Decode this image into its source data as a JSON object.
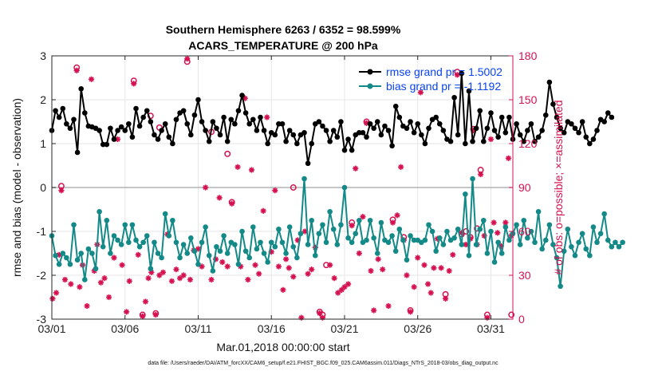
{
  "chart_data": {
    "type": "line",
    "title_line1": "Southern Hemisphere 6263 / 6352 = 98.599%",
    "title_line2": "ACARS_TEMPERATURE @ 200 hPa",
    "xlabel": "Mar.01,2018 00:00:00 start",
    "ylabel": "rmse and bias (model - observation)",
    "ylabel_right": "# of obs: o=possible; ×=assimilated",
    "footer": "data file: /Users/raeder/DAI/ATM_forcXX/CAM6_setup/f.e21.FHIST_BGC.f09_025.CAM6assim.011/Diags_NTrS_2018-03/obs_diag_output.nc",
    "xlim": [
      0,
      31.5
    ],
    "ylim": [
      -3,
      3
    ],
    "ylim_right": [
      0,
      180
    ],
    "x_ticks": [
      0,
      5,
      10,
      15,
      20,
      25,
      30
    ],
    "x_tick_labels": [
      "03/01",
      "03/06",
      "03/11",
      "03/16",
      "03/21",
      "03/26",
      "03/31"
    ],
    "y_ticks": [
      -3,
      -2,
      -1,
      0,
      1,
      2,
      3
    ],
    "y_tick_labels": [
      "-3",
      "-2",
      "-1",
      "0",
      "1",
      "2",
      "3"
    ],
    "y_right_ticks": [
      0,
      30,
      60,
      90,
      120,
      150,
      180
    ],
    "y_right_tick_labels": [
      "0",
      "30",
      "60",
      "90",
      "120",
      "150",
      "180"
    ],
    "zero_line": 0,
    "series": [
      {
        "name": "rmse",
        "legend": "rmse grand pr = 1.5002",
        "color": "#000000",
        "x_start": 0,
        "x_step": 0.25,
        "values": [
          1.3,
          1.75,
          1.6,
          1.8,
          1.45,
          1.35,
          1.55,
          0.8,
          2.25,
          1.7,
          1.4,
          1.38,
          1.35,
          1.3,
          0.98,
          0.98,
          1.35,
          1.1,
          1.3,
          1.38,
          1.3,
          1.45,
          1.15,
          1.8,
          1.4,
          1.6,
          1.75,
          1.5,
          1.2,
          1.1,
          1.3,
          1.45,
          1.15,
          1.0,
          1.55,
          1.7,
          1.75,
          1.45,
          1.2,
          1.65,
          2.0,
          1.5,
          1.3,
          1.05,
          1.5,
          1.35,
          1.2,
          1.6,
          1.05,
          1.55,
          1.45,
          1.75,
          2.1,
          1.7,
          1.45,
          1.55,
          1.3,
          1.6,
          1.3,
          1.0,
          1.25,
          1.2,
          1.45,
          1.45,
          1.05,
          1.3,
          1.2,
          1.0,
          1.2,
          1.25,
          0.55,
          1.0,
          1.45,
          1.5,
          1.4,
          1.3,
          1.05,
          1.3,
          1.15,
          1.5,
          0.85,
          1.1,
          0.85,
          1.2,
          1.25,
          1.25,
          1.15,
          1.45,
          1.35,
          1.5,
          1.2,
          1.4,
          1.3,
          0.95,
          1.85,
          1.6,
          1.4,
          1.35,
          1.5,
          1.25,
          1.45,
          1.2,
          1.0,
          1.35,
          1.55,
          1.6,
          1.45,
          1.3,
          1.1,
          1.05,
          2.05,
          1.2,
          2.6,
          1.0,
          2.2,
          1.05,
          1.35,
          1.75,
          1.05,
          1.35,
          1.7,
          1.3,
          1.15,
          1.6,
          1.25,
          1.6,
          1.1,
          1.45,
          1.2,
          1.05,
          1.3,
          1.45,
          1.05,
          1.15,
          1.3,
          1.65,
          2.4,
          1.9,
          1.6,
          1.35,
          1.25,
          1.5,
          1.45,
          1.35,
          1.25,
          1.5,
          1.15,
          1.0,
          1.1,
          1.3,
          1.55,
          1.5,
          1.7,
          1.6
        ]
      },
      {
        "name": "bias",
        "legend": "bias grand pr = -1.1192",
        "color": "#138a87",
        "x_start": 0,
        "x_step": 0.25,
        "values": [
          -1.1,
          -1.55,
          -1.75,
          -1.5,
          -1.6,
          -1.75,
          -0.85,
          -1.65,
          -1.5,
          -2.1,
          -1.4,
          -1.5,
          -1.85,
          -0.55,
          -1.35,
          -0.75,
          -1.5,
          -1.1,
          -1.2,
          -1.3,
          -0.85,
          -1.25,
          -0.85,
          -1.2,
          -1.35,
          -1.25,
          -1.1,
          -1.85,
          -1.25,
          -1.5,
          -1.6,
          -0.6,
          -1.1,
          -0.75,
          -1.25,
          -1.6,
          -1.3,
          -1.5,
          -1.15,
          -1.45,
          -1.75,
          -1.25,
          -0.9,
          -1.55,
          -1.9,
          -1.35,
          -1.45,
          -1.1,
          -1.5,
          -1.25,
          -1.3,
          -1.75,
          -1.0,
          -1.45,
          -1.6,
          -0.9,
          -1.4,
          -1.25,
          -1.5,
          -1.7,
          -1.25,
          -1.35,
          -0.95,
          -1.25,
          -1.5,
          -0.9,
          -1.35,
          -1.6,
          -1.05,
          0.2,
          -1.3,
          -0.75,
          -1.55,
          -1.05,
          -0.85,
          -1.25,
          -0.55,
          -0.95,
          -1.3,
          -0.85,
          0.0,
          -1.15,
          -1.25,
          -1.05,
          -0.75,
          -1.25,
          -1.2,
          -0.75,
          -1.15,
          -1.5,
          -0.8,
          -1.2,
          -1.25,
          -1.1,
          -1.45,
          -0.95,
          -1.2,
          -1.65,
          -1.1,
          -1.2,
          -1.2,
          -1.25,
          -1.2,
          -0.85,
          -1.0,
          -1.45,
          -1.15,
          -1.3,
          -1.0,
          -1.2,
          -1.15,
          -0.95,
          -1.3,
          -0.15,
          -1.55,
          0.2,
          -1.3,
          -0.95,
          -0.75,
          -1.5,
          -1.0,
          -1.7,
          -1.25,
          -1.5,
          -0.9,
          -1.2,
          -1.05,
          -0.85,
          -1.3,
          -0.75,
          -1.15,
          -1.0,
          -1.25,
          -0.55,
          -1.4,
          -1.2,
          -0.85,
          -1.3,
          -1.6,
          -2.25,
          -1.45,
          -0.95,
          -1.35,
          -1.55,
          -1.25,
          -1.05,
          -1.4,
          -1.55,
          -0.9,
          -1.25,
          -1.05,
          -0.6,
          -1.2,
          -1.35,
          -1.25,
          -1.35,
          -1.25
        ]
      },
      {
        "name": "obs_assimilated",
        "color": "#d5114f",
        "marker": "star",
        "values": [
          [
            0.05,
            14
          ],
          [
            0.3,
            18
          ],
          [
            0.5,
            44
          ],
          [
            0.65,
            88
          ],
          [
            0.9,
            27
          ],
          [
            1.3,
            24
          ],
          [
            1.7,
            170
          ],
          [
            1.9,
            22
          ],
          [
            2.1,
            37
          ],
          [
            2.4,
            9
          ],
          [
            2.7,
            164
          ],
          [
            2.9,
            33
          ],
          [
            3.1,
            51
          ],
          [
            3.35,
            25
          ],
          [
            3.6,
            28
          ],
          [
            3.9,
            15
          ],
          [
            4.25,
            42
          ],
          [
            4.5,
            123
          ],
          [
            4.8,
            37
          ],
          [
            5.1,
            5
          ],
          [
            5.3,
            26
          ],
          [
            5.6,
            161
          ],
          [
            5.9,
            44
          ],
          [
            6.2,
            2
          ],
          [
            6.4,
            12
          ],
          [
            6.6,
            28
          ],
          [
            6.8,
            32
          ],
          [
            7.1,
            3
          ],
          [
            7.35,
            30
          ],
          [
            7.6,
            32
          ],
          [
            7.9,
            58
          ],
          [
            8.2,
            26
          ],
          [
            8.5,
            34
          ],
          [
            8.75,
            28
          ],
          [
            9.0,
            30
          ],
          [
            9.25,
            178
          ],
          [
            9.45,
            27
          ],
          [
            9.7,
            47
          ],
          [
            10.0,
            48
          ],
          [
            10.25,
            36
          ],
          [
            10.5,
            90
          ],
          [
            10.9,
            27
          ],
          [
            11.2,
            41
          ],
          [
            11.45,
            83
          ],
          [
            11.65,
            39
          ],
          [
            12.0,
            36
          ],
          [
            12.3,
            79
          ],
          [
            12.7,
            104
          ],
          [
            12.9,
            36
          ],
          [
            13.2,
            151
          ],
          [
            13.4,
            27
          ],
          [
            13.65,
            102
          ],
          [
            13.9,
            37
          ],
          [
            14.15,
            31
          ],
          [
            14.45,
            74
          ],
          [
            14.7,
            138
          ],
          [
            15.0,
            46
          ],
          [
            15.25,
            88
          ],
          [
            15.5,
            36
          ],
          [
            15.8,
            20
          ],
          [
            16.0,
            41
          ],
          [
            16.2,
            35
          ],
          [
            16.5,
            29
          ],
          [
            16.8,
            54
          ],
          [
            17.05,
            1
          ],
          [
            17.3,
            60
          ],
          [
            17.5,
            31
          ],
          [
            17.75,
            34
          ],
          [
            18.0,
            49
          ],
          [
            18.3,
            4
          ],
          [
            18.5,
            1
          ],
          [
            19.0,
            37
          ],
          [
            19.3,
            28
          ],
          [
            19.55,
            18
          ],
          [
            19.8,
            20
          ],
          [
            20.0,
            22
          ],
          [
            20.25,
            24
          ],
          [
            20.5,
            64
          ],
          [
            20.75,
            103
          ],
          [
            21.0,
            45
          ],
          [
            21.25,
            70
          ],
          [
            21.5,
            134
          ],
          [
            21.8,
            33
          ],
          [
            22.0,
            6
          ],
          [
            22.3,
            41
          ],
          [
            22.6,
            34
          ],
          [
            23.0,
            9
          ],
          [
            23.3,
            66
          ],
          [
            23.6,
            71
          ],
          [
            23.85,
            104
          ],
          [
            24.05,
            54
          ],
          [
            24.25,
            30
          ],
          [
            24.5,
            5
          ],
          [
            24.75,
            22
          ],
          [
            25.0,
            42
          ],
          [
            25.2,
            155
          ],
          [
            25.45,
            37
          ],
          [
            25.7,
            24
          ],
          [
            25.9,
            18
          ],
          [
            26.1,
            35
          ],
          [
            26.35,
            55
          ],
          [
            26.6,
            35
          ],
          [
            26.9,
            14
          ],
          [
            27.15,
            33
          ],
          [
            27.4,
            44
          ],
          [
            27.7,
            167
          ],
          [
            28.0,
            59
          ],
          [
            28.3,
            51
          ],
          [
            28.6,
            55
          ],
          [
            28.8,
            129
          ],
          [
            29.05,
            51
          ],
          [
            29.3,
            99
          ],
          [
            29.55,
            57
          ],
          [
            29.75,
            1
          ],
          [
            30.0,
            123
          ],
          [
            30.2,
            66
          ],
          [
            30.45,
            59
          ],
          [
            30.7,
            50
          ],
          [
            31.0,
            66
          ],
          [
            31.2,
            110
          ],
          [
            31.4,
            57
          ]
        ]
      },
      {
        "name": "obs_possible",
        "color": "#d5114f",
        "marker": "circle",
        "values": [
          [
            0.65,
            91
          ],
          [
            1.7,
            172
          ],
          [
            5.6,
            163
          ],
          [
            6.2,
            3
          ],
          [
            6.75,
            139
          ],
          [
            7.1,
            4
          ],
          [
            7.35,
            131
          ],
          [
            9.25,
            176
          ],
          [
            10.9,
            128
          ],
          [
            12.0,
            113
          ],
          [
            12.3,
            80
          ],
          [
            16.5,
            90
          ],
          [
            18.3,
            5
          ],
          [
            18.5,
            3
          ],
          [
            18.75,
            37
          ],
          [
            20.5,
            66
          ],
          [
            21.5,
            135
          ],
          [
            23.3,
            68
          ],
          [
            24.05,
            56
          ],
          [
            24.5,
            6
          ],
          [
            26.9,
            17
          ],
          [
            27.7,
            169
          ],
          [
            28.0,
            58
          ],
          [
            28.3,
            60
          ],
          [
            28.6,
            56
          ],
          [
            28.8,
            130
          ],
          [
            29.05,
            62
          ],
          [
            29.3,
            102
          ],
          [
            29.75,
            3
          ],
          [
            31.4,
            3
          ]
        ]
      }
    ]
  }
}
